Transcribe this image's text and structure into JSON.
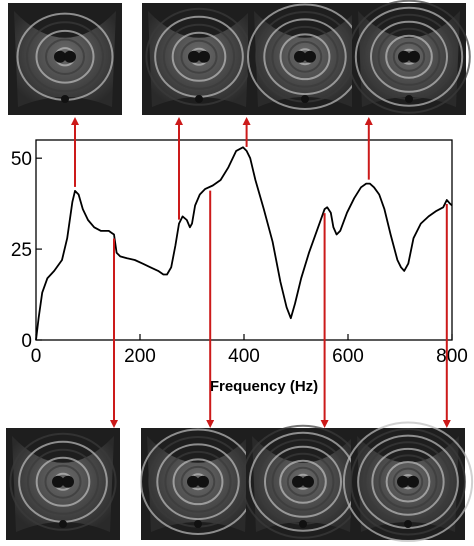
{
  "chart_data": {
    "type": "line",
    "title": "",
    "xlabel": "Frequency (Hz)",
    "ylabel": "",
    "xlim": [
      0,
      800
    ],
    "ylim": [
      0,
      55
    ],
    "xticks": [
      0,
      200,
      400,
      600,
      800
    ],
    "yticks": [
      0,
      25,
      50
    ],
    "grid": false,
    "legend": "none",
    "line_color": "#000000",
    "arrow_color": "#cc1a1a",
    "series": [
      {
        "x": [
          0,
          5,
          12,
          22,
          35,
          50,
          60,
          70,
          75,
          82,
          90,
          100,
          112,
          125,
          140,
          145,
          150,
          155,
          162,
          175,
          190,
          205,
          220,
          235,
          245,
          252,
          260,
          268,
          275,
          282,
          290,
          296,
          300,
          306,
          315,
          325,
          340,
          355,
          370,
          385,
          398,
          405,
          412,
          422,
          438,
          455,
          470,
          482,
          490,
          498,
          510,
          525,
          540,
          550,
          555,
          560,
          567,
          572,
          578,
          585,
          598,
          612,
          625,
          635,
          642,
          650,
          660,
          670,
          682,
          695,
          702,
          708,
          716,
          726,
          740,
          755,
          770,
          783,
          790,
          796,
          800
        ],
        "y": [
          0,
          6,
          13,
          17,
          19,
          22,
          28,
          38,
          41,
          40,
          36,
          33,
          31,
          30,
          30,
          29.5,
          29,
          24,
          23,
          22.5,
          22,
          21,
          20,
          19,
          18,
          18,
          20,
          26,
          32,
          34,
          33,
          31,
          32,
          37,
          40,
          41.5,
          42.5,
          44,
          47.5,
          52,
          53,
          52,
          50,
          44,
          36,
          27,
          16,
          9,
          6,
          10,
          17,
          24,
          30,
          34,
          36,
          36.5,
          35,
          31,
          29,
          30,
          35,
          39,
          42,
          43,
          43,
          42,
          40,
          36,
          29,
          22,
          20,
          19,
          21,
          28,
          32,
          34,
          35.5,
          36.5,
          38.5,
          37.5,
          37
        ]
      }
    ],
    "mode_markers": [
      {
        "freq": 75,
        "image": "top-1"
      },
      {
        "freq": 150,
        "image": "bottom-1"
      },
      {
        "freq": 275,
        "image": "top-2"
      },
      {
        "freq": 335,
        "image": "bottom-2"
      },
      {
        "freq": 405,
        "image": "top-3"
      },
      {
        "freq": 555,
        "image": "bottom-3"
      },
      {
        "freq": 640,
        "image": "top-4"
      },
      {
        "freq": 790,
        "image": "bottom-4"
      }
    ]
  },
  "images": {
    "top": [
      "mode-pattern-1",
      "mode-pattern-2",
      "mode-pattern-3",
      "mode-pattern-4"
    ],
    "bottom": [
      "mode-pattern-5",
      "mode-pattern-6",
      "mode-pattern-7",
      "mode-pattern-8"
    ]
  }
}
